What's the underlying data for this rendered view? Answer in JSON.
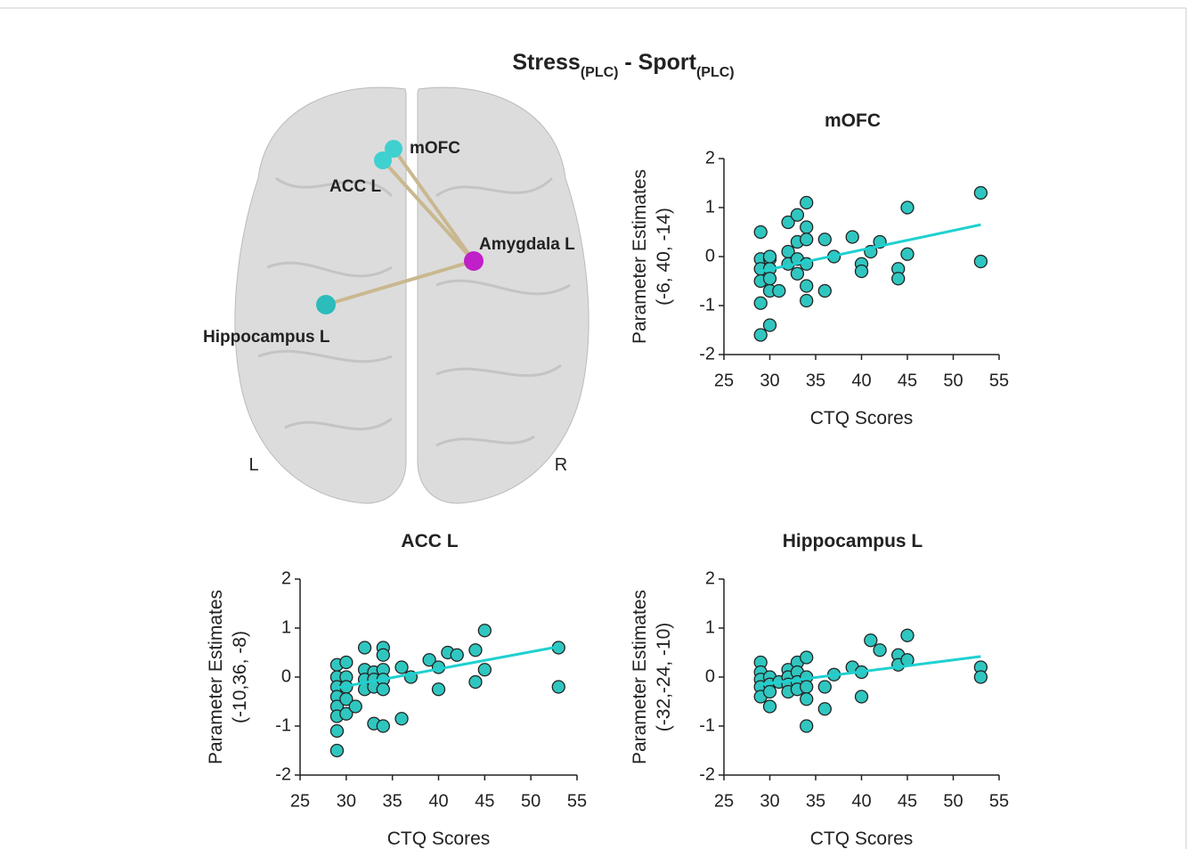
{
  "title": {
    "parts": [
      "Stress",
      "(PLC)",
      " - Sport",
      "(PLC)"
    ]
  },
  "brain": {
    "labels": [
      "mOFC",
      "ACC L",
      "Amygdala L",
      "Hippocampus L"
    ],
    "sides": [
      "L",
      "R"
    ]
  },
  "chart_data": [
    {
      "type": "scatter",
      "title": "mOFC",
      "xlabel": "CTQ Scores",
      "ylabel": [
        "Parameter Estimates",
        "(-6, 40, -14)"
      ],
      "color": "#30c6c0",
      "line_color": "#20d0d0",
      "xlim": [
        25,
        55
      ],
      "xticks": [
        25,
        30,
        35,
        40,
        45,
        50,
        55
      ],
      "ylim": [
        -2,
        2
      ],
      "yticks": [
        -2,
        -1,
        0,
        1,
        2
      ],
      "x": [
        29,
        29,
        29,
        29,
        29,
        29,
        30,
        30,
        30,
        30,
        30,
        30,
        31,
        32,
        32,
        32,
        33,
        33,
        33,
        33,
        34,
        34,
        34,
        34,
        34,
        34,
        36,
        36,
        37,
        39,
        40,
        40,
        41,
        42,
        44,
        44,
        45,
        45,
        53,
        53
      ],
      "y": [
        0.5,
        -0.05,
        -0.25,
        -0.5,
        -0.95,
        -1.6,
        -0.05,
        -0.25,
        -0.45,
        -0.7,
        -1.4,
        0,
        -0.7,
        0.7,
        0.1,
        -0.15,
        0.85,
        0.3,
        -0.05,
        -0.35,
        1.1,
        0.6,
        0.35,
        -0.15,
        -0.6,
        -0.9,
        0.35,
        -0.7,
        0,
        0.4,
        -0.15,
        -0.3,
        0.1,
        0.3,
        -0.25,
        -0.45,
        1,
        0.05,
        1.3,
        -0.1
      ],
      "trendline": {
        "x": [
          29,
          53
        ],
        "y": [
          -0.3,
          0.65
        ]
      }
    },
    {
      "type": "scatter",
      "title": "ACC L",
      "xlabel": "CTQ Scores",
      "ylabel": [
        "Parameter Estimates",
        "(-10,36, -8)"
      ],
      "color": "#30c6c0",
      "line_color": "#20d0d0",
      "xlim": [
        25,
        55
      ],
      "xticks": [
        25,
        30,
        35,
        40,
        45,
        50,
        55
      ],
      "ylim": [
        -2,
        2
      ],
      "yticks": [
        -2,
        -1,
        0,
        1,
        2
      ],
      "x": [
        29,
        29,
        29,
        29,
        29,
        29,
        29,
        29,
        30,
        30,
        30,
        30,
        30,
        31,
        32,
        32,
        32,
        32,
        33,
        33,
        33,
        33,
        34,
        34,
        34,
        34,
        34,
        34,
        36,
        36,
        37,
        39,
        40,
        40,
        41,
        42,
        44,
        44,
        45,
        45,
        53,
        53
      ],
      "y": [
        0.25,
        0,
        -0.2,
        -0.4,
        -0.6,
        -0.8,
        -1.1,
        -1.5,
        0.3,
        0,
        -0.2,
        -0.45,
        -0.75,
        -0.6,
        0.6,
        0.15,
        -0.05,
        -0.25,
        0.1,
        -0.05,
        -0.2,
        -0.95,
        0.6,
        0.45,
        0.15,
        -0.05,
        -0.25,
        -1,
        0.2,
        -0.85,
        0,
        0.35,
        0.2,
        -0.25,
        0.5,
        0.45,
        0.55,
        -0.1,
        0.95,
        0.15,
        0.6,
        -0.2
      ],
      "trendline": {
        "x": [
          29,
          53
        ],
        "y": [
          -0.22,
          0.62
        ]
      }
    },
    {
      "type": "scatter",
      "title": "Hippocampus L",
      "xlabel": "CTQ Scores",
      "ylabel": [
        "Parameter Estimates",
        "(-32,-24, -10)"
      ],
      "color": "#30c6c0",
      "line_color": "#20d0d0",
      "xlim": [
        25,
        55
      ],
      "xticks": [
        25,
        30,
        35,
        40,
        45,
        50,
        55
      ],
      "ylim": [
        -2,
        2
      ],
      "yticks": [
        -2,
        -1,
        0,
        1,
        2
      ],
      "x": [
        29,
        29,
        29,
        29,
        29,
        30,
        30,
        30,
        30,
        31,
        32,
        32,
        32,
        32,
        33,
        33,
        33,
        33,
        34,
        34,
        34,
        34,
        34,
        36,
        36,
        37,
        39,
        40,
        40,
        41,
        42,
        44,
        44,
        45,
        45,
        53,
        53
      ],
      "y": [
        0.3,
        0.1,
        -0.05,
        -0.2,
        -0.4,
        0,
        -0.15,
        -0.3,
        -0.6,
        -0.1,
        0.15,
        0,
        -0.15,
        -0.3,
        0.3,
        0.1,
        -0.1,
        -0.25,
        0.4,
        0,
        -0.2,
        -0.45,
        -1,
        -0.2,
        -0.65,
        0.05,
        0.2,
        0.1,
        -0.4,
        0.75,
        0.55,
        0.45,
        0.25,
        0.85,
        0.35,
        0.2,
        0
      ],
      "trendline": {
        "x": [
          29,
          53
        ],
        "y": [
          -0.15,
          0.42
        ]
      }
    }
  ]
}
